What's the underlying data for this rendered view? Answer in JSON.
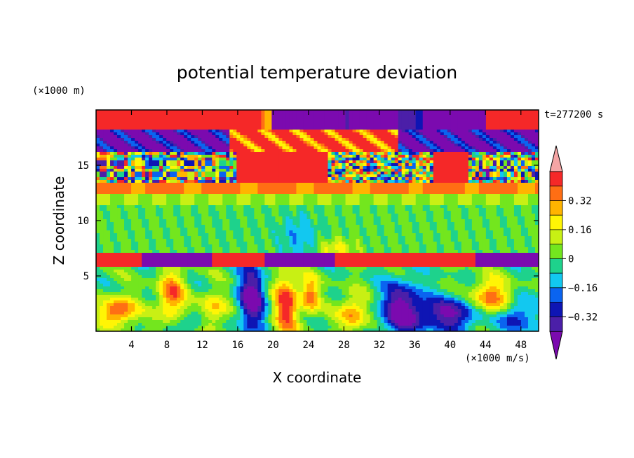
{
  "chart_data": {
    "type": "heatmap",
    "title": "potential temperature deviation",
    "xlabel": "X coordinate",
    "ylabel": "Z coordinate",
    "x_unit": "(×1000 m/s)",
    "y_unit": "(×1000 m)",
    "time_label": "t=277200 s",
    "xlim": [
      0,
      50
    ],
    "ylim": [
      0,
      20
    ],
    "x_ticks": [
      4,
      8,
      12,
      16,
      20,
      24,
      28,
      32,
      36,
      40,
      44,
      48
    ],
    "y_ticks": [
      5,
      10,
      15
    ],
    "colorbar": {
      "levels": [
        -0.4,
        -0.32,
        -0.24,
        -0.16,
        -0.08,
        0,
        0.08,
        0.16,
        0.24,
        0.32,
        0.4
      ],
      "colors": [
        "#7B0AAF",
        "#4B1FA8",
        "#0E15B4",
        "#0A64F0",
        "#12C8F0",
        "#1ED28C",
        "#73E61E",
        "#C8F014",
        "#FFF505",
        "#FFB400",
        "#FF6E14",
        "#F52828",
        "#F5A5A5"
      ],
      "labels": [
        "0.32",
        "0.16",
        "0",
        "−0.16",
        "−0.32"
      ],
      "label_values": [
        0.32,
        0.16,
        0,
        -0.16,
        -0.32
      ]
    }
  }
}
